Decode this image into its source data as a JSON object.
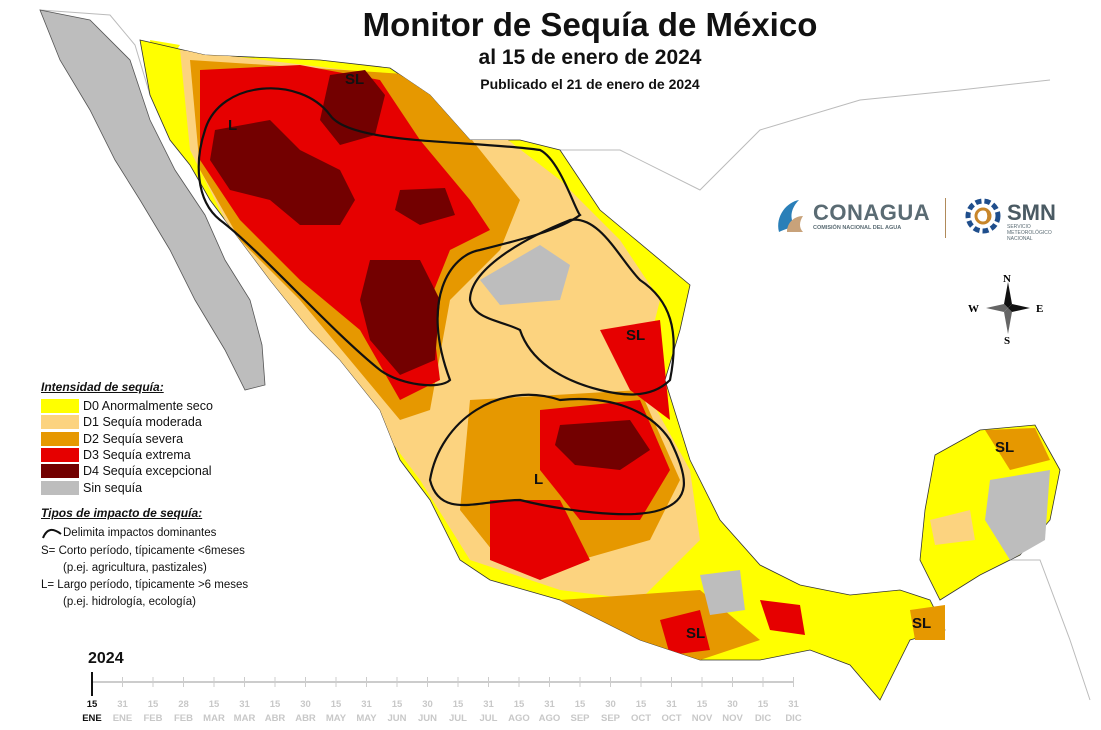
{
  "title": "Monitor de Sequía de México",
  "subtitle": "al 15 de enero de 2024",
  "published": "Publicado el 21 de enero de 2024",
  "legend": {
    "heading": "Intensidad de sequía:",
    "items": [
      {
        "label": "D0 Anormalmente seco",
        "color": "#ffff00"
      },
      {
        "label": "D1 Sequía moderada",
        "color": "#fcd37f"
      },
      {
        "label": "D2 Sequía severa",
        "color": "#e69800"
      },
      {
        "label": "D3 Sequía extrema",
        "color": "#e60000"
      },
      {
        "label": "D4 Sequía excepcional",
        "color": "#730000"
      },
      {
        "label": "Sin sequía",
        "color": "#bdbdbd"
      }
    ]
  },
  "impacts": {
    "heading": "Tipos de impacto de sequía:",
    "line_label": "Delimita impactos dominantes",
    "short_label": "S= Corto período, típicamente <6meses",
    "short_examples": "(p.ej. agricultura, pastizales)",
    "long_label": "L= Largo período, típicamente >6 meses",
    "long_examples": "(p.ej. hidrología, ecología)"
  },
  "map_labels": {
    "sl_north": "SL",
    "l_north": "L",
    "sl_east": "SL",
    "l_central": "L",
    "sl_yucatan": "SL",
    "sl_south": "SL",
    "sl_chiapas": "SL"
  },
  "brand": {
    "conagua": "CONAGUA",
    "conagua_sub": "COMISIÓN NACIONAL DEL AGUA",
    "smn": "SMN",
    "smn_sub": "SERVICIO METEOROLÓGICO NACIONAL"
  },
  "compass": {
    "n": "N",
    "s": "S",
    "e": "E",
    "w": "W"
  },
  "timeline": {
    "year": "2024",
    "days": [
      "15",
      "31",
      "15",
      "28",
      "15",
      "31",
      "15",
      "30",
      "15",
      "31",
      "15",
      "30",
      "15",
      "31",
      "15",
      "31",
      "15",
      "30",
      "15",
      "31",
      "15",
      "30",
      "15",
      "31"
    ],
    "months": [
      "ENE",
      "ENE",
      "FEB",
      "FEB",
      "MAR",
      "MAR",
      "ABR",
      "ABR",
      "MAY",
      "MAY",
      "JUN",
      "JUN",
      "JUL",
      "JUL",
      "AGO",
      "AGO",
      "SEP",
      "SEP",
      "OCT",
      "OCT",
      "NOV",
      "NOV",
      "DIC",
      "DIC"
    ],
    "current_index": 0
  },
  "colors": {
    "d0": "#ffff00",
    "d1": "#fcd37f",
    "d2": "#e69800",
    "d3": "#e60000",
    "d4": "#730000",
    "none": "#bdbdbd",
    "outside": "#ffffff"
  }
}
